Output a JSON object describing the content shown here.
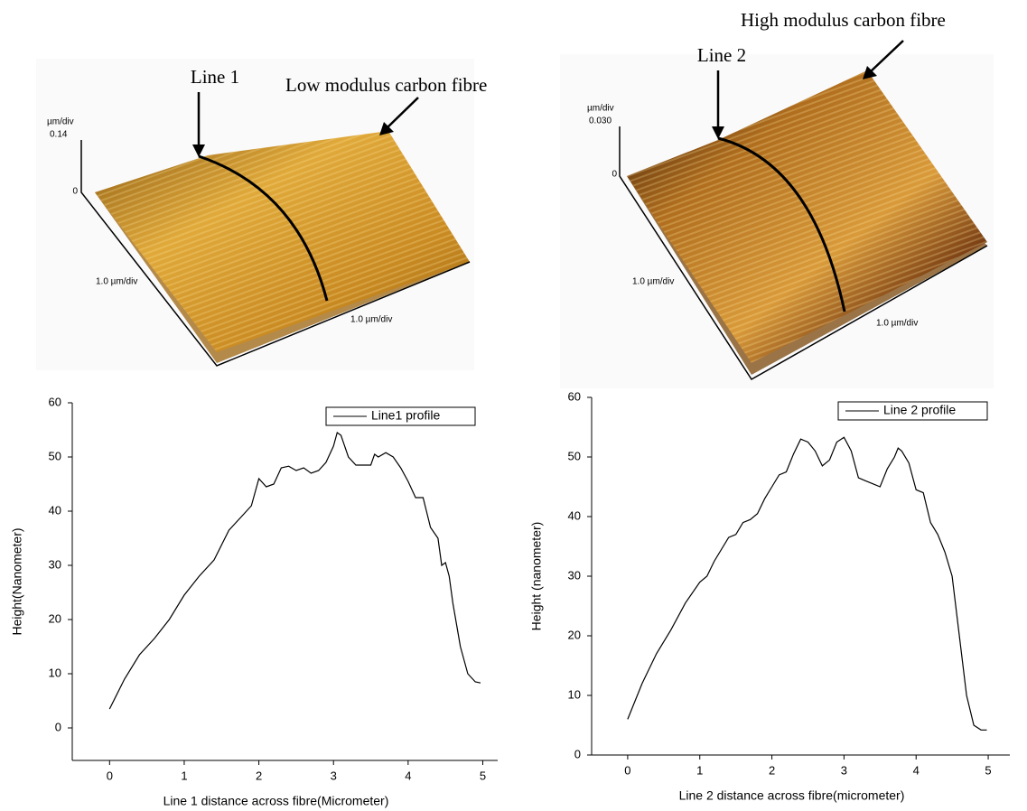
{
  "images": [
    {
      "line_label": "Line 1",
      "fibre_label": "Low modulus carbon fibre",
      "z_unit": "µm/div",
      "z_max": "0.14",
      "z_zero": "0",
      "y_scale": "1.0 µm/div",
      "x_scale": "1.0 µm/div"
    },
    {
      "line_label": "Line 2",
      "fibre_label": "High modulus carbon fibre",
      "z_unit": "µm/div",
      "z_max": "0.030",
      "z_zero": "0",
      "y_scale": "1.0 µm/div",
      "x_scale": "1.0 µm/div"
    }
  ],
  "chart_data": [
    {
      "type": "line",
      "x_label": "Line 1 distance across fibre(Micrometer)",
      "y_label": "Height(Nanometer)",
      "xlim": [
        -0.5,
        5.2
      ],
      "xticks": [
        0,
        1,
        2,
        3,
        4,
        5
      ],
      "ylim": [
        -6,
        60
      ],
      "yticks": [
        0,
        10,
        20,
        30,
        40,
        50,
        60
      ],
      "legend": "upper right",
      "x": [
        0,
        0.2,
        0.4,
        0.6,
        0.8,
        1.0,
        1.2,
        1.4,
        1.6,
        1.8,
        1.9,
        2.0,
        2.1,
        2.2,
        2.3,
        2.4,
        2.5,
        2.6,
        2.7,
        2.8,
        2.9,
        3.0,
        3.05,
        3.1,
        3.2,
        3.3,
        3.4,
        3.5,
        3.55,
        3.6,
        3.7,
        3.8,
        3.9,
        4.0,
        4.1,
        4.2,
        4.3,
        4.4,
        4.45,
        4.5,
        4.55,
        4.6,
        4.7,
        4.8,
        4.9,
        4.97
      ],
      "series": [
        {
          "name": "Line1 profile",
          "color": "#000000",
          "values": [
            3.5,
            9,
            13.5,
            16.5,
            20,
            24.5,
            28,
            31,
            36.5,
            39.5,
            41,
            46,
            44.5,
            45,
            48,
            48.3,
            47.5,
            48,
            47,
            47.5,
            49,
            52,
            54.5,
            54,
            50,
            48.5,
            48.5,
            48.5,
            50.5,
            50,
            50.8,
            50,
            48,
            45.5,
            42.5,
            42.5,
            37,
            35,
            30,
            30.5,
            28,
            23,
            15,
            10,
            8.5,
            8.3
          ]
        }
      ]
    },
    {
      "type": "line",
      "x_label": "Line 2 distance across fibre(micrometer)",
      "y_label": "Height (nanometer)",
      "xlim": [
        -0.5,
        5.3
      ],
      "xticks": [
        0,
        1,
        2,
        3,
        4,
        5
      ],
      "ylim": [
        0,
        60
      ],
      "yticks": [
        0,
        10,
        20,
        30,
        40,
        50,
        60
      ],
      "legend": "upper right",
      "x": [
        0,
        0.2,
        0.4,
        0.6,
        0.8,
        1.0,
        1.1,
        1.2,
        1.4,
        1.5,
        1.6,
        1.7,
        1.8,
        1.9,
        2.0,
        2.1,
        2.2,
        2.3,
        2.4,
        2.5,
        2.6,
        2.7,
        2.8,
        2.9,
        3.0,
        3.1,
        3.2,
        3.3,
        3.4,
        3.5,
        3.6,
        3.7,
        3.75,
        3.8,
        3.9,
        4.0,
        4.1,
        4.2,
        4.3,
        4.4,
        4.5,
        4.6,
        4.7,
        4.8,
        4.9,
        4.98
      ],
      "series": [
        {
          "name": "Line 2 profile",
          "color": "#000000",
          "values": [
            6,
            12,
            17,
            21,
            25.5,
            29,
            30,
            32.5,
            36.5,
            37,
            39,
            39.5,
            40.5,
            43,
            45,
            47,
            47.5,
            50.5,
            53,
            52.5,
            51,
            48.5,
            49.5,
            52.5,
            53.3,
            51,
            46.5,
            46,
            45.5,
            45,
            48,
            50,
            51.5,
            51,
            49,
            44.5,
            44,
            39,
            37,
            34,
            30,
            20,
            10,
            5,
            4.2,
            4.2
          ]
        }
      ]
    }
  ]
}
